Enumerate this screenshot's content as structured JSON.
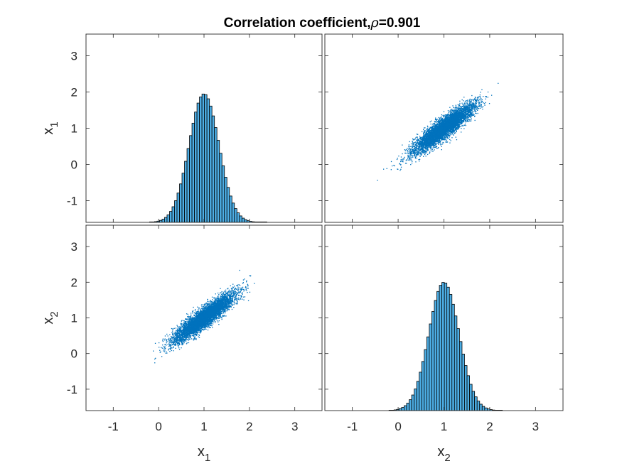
{
  "figure": {
    "title_text": "Correlation coefficient,",
    "title_symbol": "ρ",
    "title_value": "=0.901",
    "x_labels": [
      {
        "base": "x",
        "sub": "1"
      },
      {
        "base": "x",
        "sub": "2"
      }
    ],
    "y_labels": [
      {
        "base": "x",
        "sub": "1"
      },
      {
        "base": "x",
        "sub": "2"
      }
    ]
  },
  "chart_data": {
    "type": "scatter-matrix",
    "variables": [
      "x1",
      "x2"
    ],
    "correlation": 0.901,
    "axis_range": [
      -1.6,
      3.6
    ],
    "ticks": [
      -1,
      0,
      1,
      2,
      3
    ],
    "tick_labels": [
      "-1",
      "0",
      "1",
      "2",
      "3"
    ],
    "colors": {
      "scatter": "#0072BD",
      "hist_fill": "#4DAEE5",
      "hist_edge": "#000000"
    },
    "panels": [
      {
        "row": 1,
        "col": 1,
        "type": "histogram",
        "variable": "x1",
        "bin_width": 0.055,
        "mean": 1.0,
        "sd": 0.33,
        "min": -0.2,
        "max": 2.4,
        "peak_height": 3.55
      },
      {
        "row": 1,
        "col": 2,
        "type": "scatter",
        "x": "x2",
        "y": "x1",
        "mean": [
          1.0,
          1.0
        ],
        "sd": [
          0.33,
          0.33
        ],
        "points": 6000
      },
      {
        "row": 2,
        "col": 1,
        "type": "scatter",
        "x": "x1",
        "y": "x2",
        "mean": [
          1.0,
          1.0
        ],
        "sd": [
          0.33,
          0.33
        ],
        "points": 6000
      },
      {
        "row": 2,
        "col": 2,
        "type": "histogram",
        "variable": "x2",
        "bin_width": 0.055,
        "mean": 1.0,
        "sd": 0.33,
        "min": -0.2,
        "max": 2.3,
        "peak_height": 3.6
      }
    ]
  }
}
